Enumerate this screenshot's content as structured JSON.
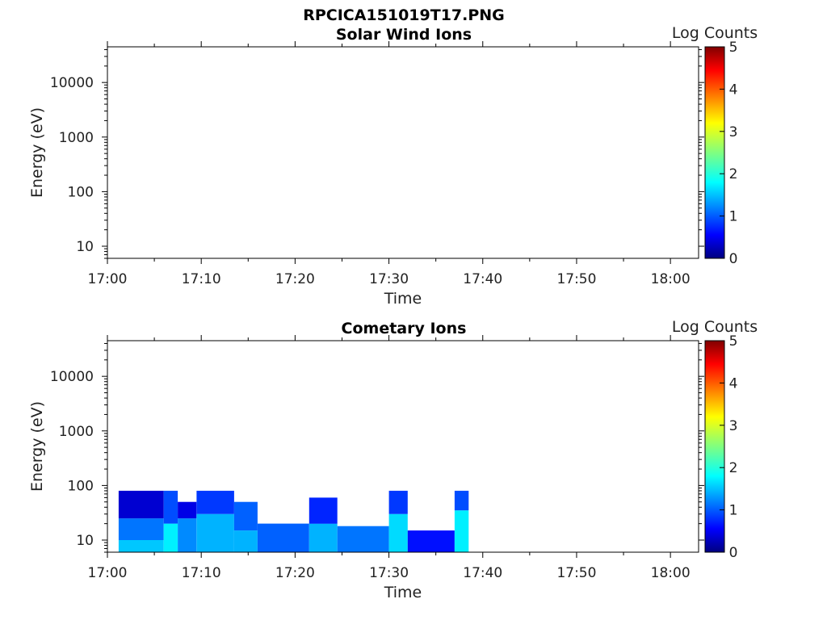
{
  "figure": {
    "title": "RPCICA151019T17.PNG"
  },
  "chart_data": [
    {
      "type": "heatmap",
      "title": "Solar Wind Ions",
      "xlabel": "Time",
      "ylabel": "Energy (eV)",
      "x_ticks": [
        "17:00",
        "17:10",
        "17:20",
        "17:30",
        "17:40",
        "17:50",
        "18:00"
      ],
      "xlim": [
        "17:00",
        "18:03"
      ],
      "y_scale": "log",
      "y_ticks": [
        "10",
        "100",
        "1000",
        "10000"
      ],
      "ylim": [
        6,
        45000
      ],
      "colorbar": {
        "label": "Log Counts",
        "range": [
          0,
          5
        ],
        "ticks": [
          "0",
          "1",
          "2",
          "3",
          "4",
          "5"
        ],
        "colormap": "jet"
      },
      "data_note": "",
      "blocks": []
    },
    {
      "type": "heatmap",
      "title": "Cometary Ions",
      "xlabel": "Time",
      "ylabel": "Energy (eV)",
      "x_ticks": [
        "17:00",
        "17:10",
        "17:20",
        "17:30",
        "17:40",
        "17:50",
        "18:00"
      ],
      "xlim": [
        "17:00",
        "18:03"
      ],
      "y_scale": "log",
      "y_ticks": [
        "10",
        "100",
        "1000",
        "10000"
      ],
      "ylim": [
        6,
        45000
      ],
      "colorbar": {
        "label": "Log Counts",
        "range": [
          0,
          5
        ],
        "ticks": [
          "0",
          "1",
          "2",
          "3",
          "4",
          "5"
        ],
        "colormap": "jet"
      },
      "blocks": [
        {
          "t0": 1.2,
          "t1": 6.0,
          "e0": 6,
          "e1": 10,
          "v": 1.6
        },
        {
          "t0": 1.2,
          "t1": 6.0,
          "e0": 10,
          "e1": 25,
          "v": 1.2
        },
        {
          "t0": 1.2,
          "t1": 6.0,
          "e0": 25,
          "e1": 80,
          "v": 0.4
        },
        {
          "t0": 6.0,
          "t1": 7.5,
          "e0": 6,
          "e1": 20,
          "v": 1.8
        },
        {
          "t0": 6.0,
          "t1": 7.5,
          "e0": 20,
          "e1": 80,
          "v": 1.0
        },
        {
          "t0": 7.5,
          "t1": 9.5,
          "e0": 6,
          "e1": 25,
          "v": 1.3
        },
        {
          "t0": 7.5,
          "t1": 9.5,
          "e0": 25,
          "e1": 50,
          "v": 0.5
        },
        {
          "t0": 9.5,
          "t1": 13.5,
          "e0": 6,
          "e1": 30,
          "v": 1.5
        },
        {
          "t0": 9.5,
          "t1": 13.5,
          "e0": 30,
          "e1": 80,
          "v": 0.9
        },
        {
          "t0": 13.5,
          "t1": 16.0,
          "e0": 6,
          "e1": 15,
          "v": 1.5
        },
        {
          "t0": 13.5,
          "t1": 16.0,
          "e0": 15,
          "e1": 50,
          "v": 1.1
        },
        {
          "t0": 16.0,
          "t1": 21.5,
          "e0": 6,
          "e1": 20,
          "v": 1.1
        },
        {
          "t0": 21.5,
          "t1": 24.5,
          "e0": 6,
          "e1": 20,
          "v": 1.5
        },
        {
          "t0": 21.5,
          "t1": 24.5,
          "e0": 20,
          "e1": 60,
          "v": 0.8
        },
        {
          "t0": 24.5,
          "t1": 30.0,
          "e0": 6,
          "e1": 18,
          "v": 1.2
        },
        {
          "t0": 30.0,
          "t1": 32.0,
          "e0": 6,
          "e1": 30,
          "v": 1.7
        },
        {
          "t0": 30.0,
          "t1": 32.0,
          "e0": 30,
          "e1": 80,
          "v": 0.9
        },
        {
          "t0": 32.0,
          "t1": 37.0,
          "e0": 6,
          "e1": 15,
          "v": 0.7
        },
        {
          "t0": 37.0,
          "t1": 38.5,
          "e0": 6,
          "e1": 35,
          "v": 1.8
        },
        {
          "t0": 37.0,
          "t1": 38.5,
          "e0": 35,
          "e1": 80,
          "v": 1.0
        }
      ]
    }
  ]
}
